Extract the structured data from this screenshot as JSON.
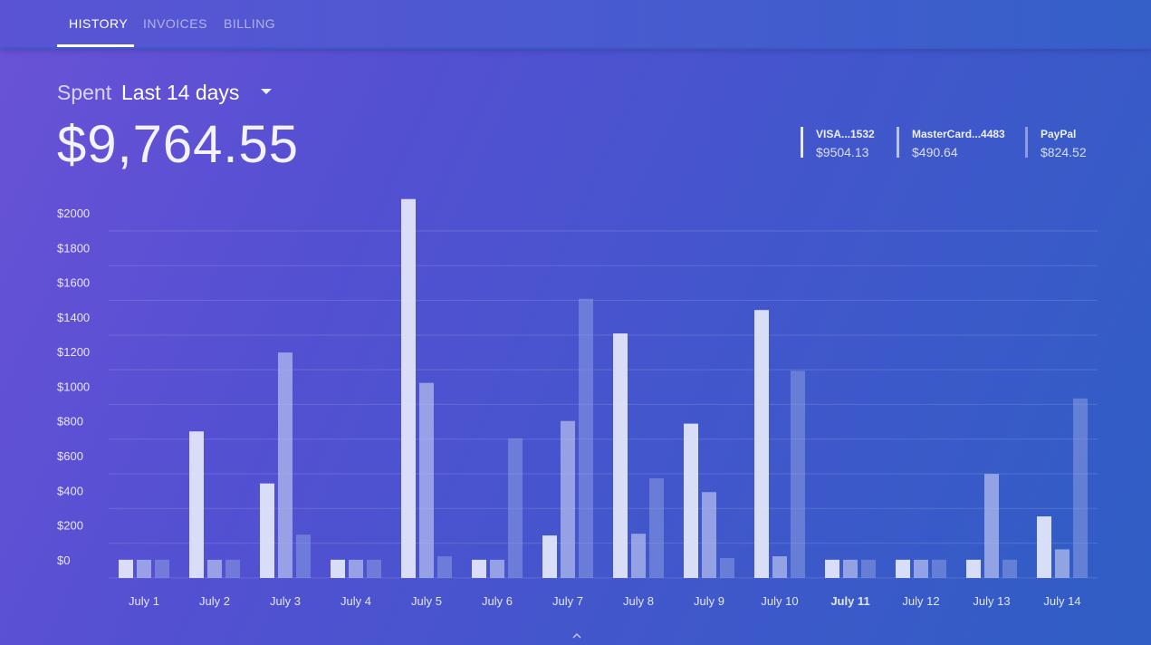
{
  "tabs": [
    {
      "label": "HISTORY",
      "active": true
    },
    {
      "label": "INVOICES",
      "active": false
    },
    {
      "label": "BILLING",
      "active": false
    }
  ],
  "summary": {
    "spent_label": "Spent",
    "period": "Last 14 days",
    "total": "$9,764.55"
  },
  "legend": [
    {
      "name": "VISA...1532",
      "value": "$9504.13",
      "color": "#e6e9fb"
    },
    {
      "name": "MasterCard...4483",
      "value": "$490.64",
      "color": "#b8c2ef"
    },
    {
      "name": "PayPal",
      "value": "$824.52",
      "color": "#8b9ce2"
    }
  ],
  "chart_data": {
    "type": "bar",
    "categories": [
      "July 1",
      "July 2",
      "July 3",
      "July 4",
      "July 5",
      "July 6",
      "July 7",
      "July 8",
      "July 9",
      "July 10",
      "July 11",
      "July 12",
      "July 13",
      "July 14"
    ],
    "highlighted_category": "July 11",
    "series": [
      {
        "name": "VISA...1532",
        "color": "#e6e9fb",
        "values": [
          5,
          745,
          445,
          5,
          2085,
          5,
          145,
          1310,
          790,
          1445,
          5,
          5,
          5,
          255
        ]
      },
      {
        "name": "MasterCard...4483",
        "color": "#b8c2ef",
        "values": [
          5,
          5,
          1200,
          5,
          1025,
          5,
          805,
          155,
          395,
          25,
          5,
          5,
          500,
          65
        ]
      },
      {
        "name": "PayPal",
        "color": "#8b9ce2",
        "values": [
          5,
          5,
          150,
          5,
          25,
          705,
          1510,
          475,
          15,
          1095,
          5,
          5,
          5,
          935
        ]
      }
    ],
    "yticks": [
      "$0",
      "$200",
      "$400",
      "$600",
      "$800",
      "$1000",
      "$1200",
      "$1400",
      "$1600",
      "$1800",
      "$2000"
    ],
    "ylim": [
      -100,
      2000
    ],
    "grid": true,
    "legend_position": "top-right"
  }
}
